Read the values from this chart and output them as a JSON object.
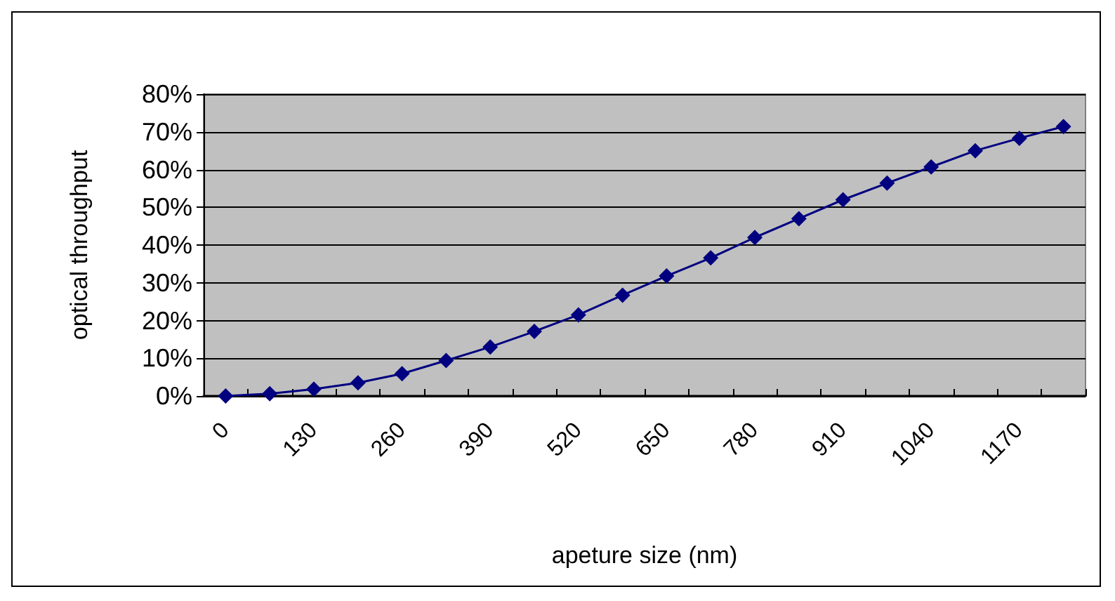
{
  "chart_data": {
    "type": "line",
    "xlabel": "apeture size (nm)",
    "ylabel": "optical throughput",
    "categories": [
      "0",
      null,
      "130",
      null,
      "260",
      null,
      "390",
      null,
      "520",
      null,
      "650",
      null,
      "780",
      null,
      "910",
      null,
      "1040",
      null,
      "1170",
      null
    ],
    "series": [
      {
        "color": "#000080",
        "values": [
          0,
          0.6,
          1.8,
          3.5,
          5.9,
          9.4,
          13,
          17.1,
          21.5,
          26.7,
          31.8,
          36.6,
          42,
          47,
          52,
          56.4,
          60.7,
          65,
          68.3,
          71.4
        ]
      }
    ],
    "ylim": [
      0,
      80
    ],
    "yticks": [
      {
        "value": 0,
        "label": "0%"
      },
      {
        "value": 10,
        "label": "10%"
      },
      {
        "value": 20,
        "label": "20%"
      },
      {
        "value": 30,
        "label": "30%"
      },
      {
        "value": 40,
        "label": "40%"
      },
      {
        "value": 50,
        "label": "50%"
      },
      {
        "value": 60,
        "label": "60%"
      },
      {
        "value": 70,
        "label": "70%"
      },
      {
        "value": 80,
        "label": "80%"
      }
    ],
    "grid": "y",
    "marker": "diamond",
    "line_style": "solid"
  }
}
